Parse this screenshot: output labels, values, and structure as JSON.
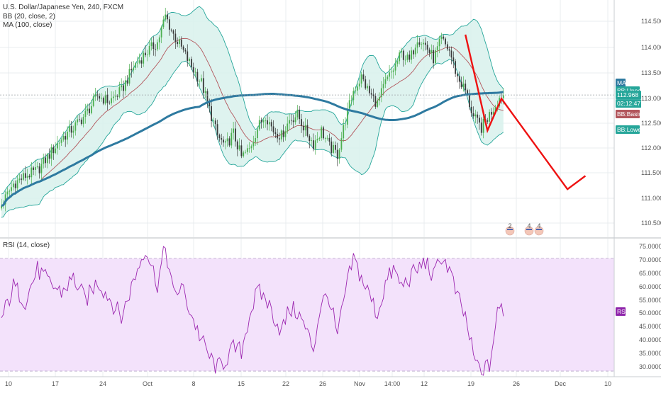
{
  "header": {
    "symbol_line": "U.S. Dollar/Japanese Yen, 240, FXCM",
    "bb_line": "BB (20, close, 2)",
    "ma_line": "MA (100, close)",
    "rsi_line": "RSI (14, close)"
  },
  "colors": {
    "bull": "#4caf50",
    "bear": "#3a3a3a",
    "bb_band": "#26a69a",
    "bb_fill": "#d8f1ec",
    "bb_basis": "#b2565c",
    "ma": "#2e7aa0",
    "projection": "#ee1111",
    "rsi_line": "#9c27b0",
    "rsi_fill": "#f3e2fb",
    "grid": "#e9ecef"
  },
  "chart_data": [
    {
      "type": "candlestick",
      "name": "price",
      "y_ticks": [
        "114.500",
        "114.000",
        "113.500",
        "113.000",
        "112.500",
        "112.000",
        "111.500",
        "111.000",
        "110.500"
      ],
      "ylim": [
        110.3,
        114.75
      ],
      "x_ticks": [
        "10",
        "17",
        "24",
        "Oct",
        "8",
        "15",
        "22",
        "26",
        "Nov",
        "14:00",
        "12",
        "19",
        "26",
        "Dec",
        "10"
      ],
      "last_price": "112.968",
      "countdown": "02:12:47",
      "tags": {
        "ma": "MA",
        "bb_upper": "BB:Upper",
        "bb_basis": "BB:Basis",
        "bb_lower": "BB:Lower"
      },
      "anchors": [
        [
          0,
          110.9
        ],
        [
          6,
          111.3
        ],
        [
          12,
          111.45
        ],
        [
          18,
          111.55
        ],
        [
          24,
          111.85
        ],
        [
          30,
          112.15
        ],
        [
          36,
          112.35
        ],
        [
          42,
          112.6
        ],
        [
          48,
          112.95
        ],
        [
          54,
          112.85
        ],
        [
          60,
          113.05
        ],
        [
          66,
          113.5
        ],
        [
          72,
          113.75
        ],
        [
          78,
          113.95
        ],
        [
          82,
          114.45
        ],
        [
          86,
          114.1
        ],
        [
          90,
          113.85
        ],
        [
          95,
          113.5
        ],
        [
          100,
          113.2
        ],
        [
          104,
          112.7
        ],
        [
          108,
          112.2
        ],
        [
          112,
          112.0
        ],
        [
          116,
          112.25
        ],
        [
          120,
          111.8
        ],
        [
          124,
          111.95
        ],
        [
          128,
          112.35
        ],
        [
          132,
          112.6
        ],
        [
          136,
          112.3
        ],
        [
          140,
          112.2
        ],
        [
          144,
          112.5
        ],
        [
          148,
          112.6
        ],
        [
          152,
          112.3
        ],
        [
          156,
          112.05
        ],
        [
          160,
          112.3
        ],
        [
          164,
          112.0
        ],
        [
          168,
          111.85
        ],
        [
          172,
          112.5
        ],
        [
          176,
          113.05
        ],
        [
          180,
          113.3
        ],
        [
          184,
          113.0
        ],
        [
          188,
          112.8
        ],
        [
          192,
          113.2
        ],
        [
          196,
          113.45
        ],
        [
          200,
          113.75
        ],
        [
          204,
          113.6
        ],
        [
          208,
          114.05
        ],
        [
          212,
          113.9
        ],
        [
          216,
          113.65
        ],
        [
          220,
          114.0
        ],
        [
          224,
          113.8
        ],
        [
          228,
          113.3
        ],
        [
          232,
          113.05
        ],
        [
          236,
          112.55
        ],
        [
          240,
          112.35
        ],
        [
          244,
          112.6
        ],
        [
          248,
          112.85
        ],
        [
          250,
          112.97
        ]
      ],
      "projection_path": [
        [
          232,
          114.1
        ],
        [
          243,
          112.3
        ],
        [
          250,
          112.9
        ],
        [
          283,
          111.2
        ],
        [
          292,
          111.45
        ]
      ]
    },
    {
      "type": "line",
      "name": "rsi",
      "y_ticks": [
        "75.0000",
        "70.0000",
        "65.0000",
        "60.0000",
        "55.0000",
        "50.0000",
        "45.0000",
        "40.0000",
        "35.0000",
        "30.0000"
      ],
      "ylim": [
        28,
        77
      ],
      "band": [
        30,
        70
      ],
      "tag": "RSI",
      "anchors": [
        [
          0,
          48
        ],
        [
          6,
          60
        ],
        [
          12,
          55
        ],
        [
          18,
          66
        ],
        [
          24,
          61
        ],
        [
          30,
          58
        ],
        [
          36,
          63
        ],
        [
          42,
          55
        ],
        [
          48,
          62
        ],
        [
          54,
          56
        ],
        [
          60,
          49
        ],
        [
          66,
          62
        ],
        [
          72,
          74
        ],
        [
          78,
          61
        ],
        [
          82,
          74
        ],
        [
          86,
          57
        ],
        [
          90,
          60
        ],
        [
          95,
          50
        ],
        [
          100,
          41
        ],
        [
          104,
          35
        ],
        [
          108,
          31
        ],
        [
          112,
          34
        ],
        [
          116,
          38
        ],
        [
          120,
          37
        ],
        [
          124,
          50
        ],
        [
          128,
          58
        ],
        [
          132,
          56
        ],
        [
          136,
          50
        ],
        [
          140,
          44
        ],
        [
          144,
          52
        ],
        [
          148,
          51
        ],
        [
          152,
          45
        ],
        [
          156,
          38
        ],
        [
          160,
          55
        ],
        [
          164,
          56
        ],
        [
          168,
          42
        ],
        [
          172,
          58
        ],
        [
          176,
          70
        ],
        [
          180,
          63
        ],
        [
          184,
          57
        ],
        [
          188,
          50
        ],
        [
          192,
          61
        ],
        [
          196,
          66
        ],
        [
          200,
          60
        ],
        [
          204,
          63
        ],
        [
          208,
          66
        ],
        [
          212,
          69
        ],
        [
          216,
          63
        ],
        [
          220,
          71
        ],
        [
          224,
          66
        ],
        [
          228,
          56
        ],
        [
          232,
          49
        ],
        [
          236,
          35
        ],
        [
          240,
          29
        ],
        [
          244,
          32
        ],
        [
          248,
          50
        ],
        [
          250,
          53
        ],
        [
          252,
          50
        ]
      ]
    }
  ]
}
